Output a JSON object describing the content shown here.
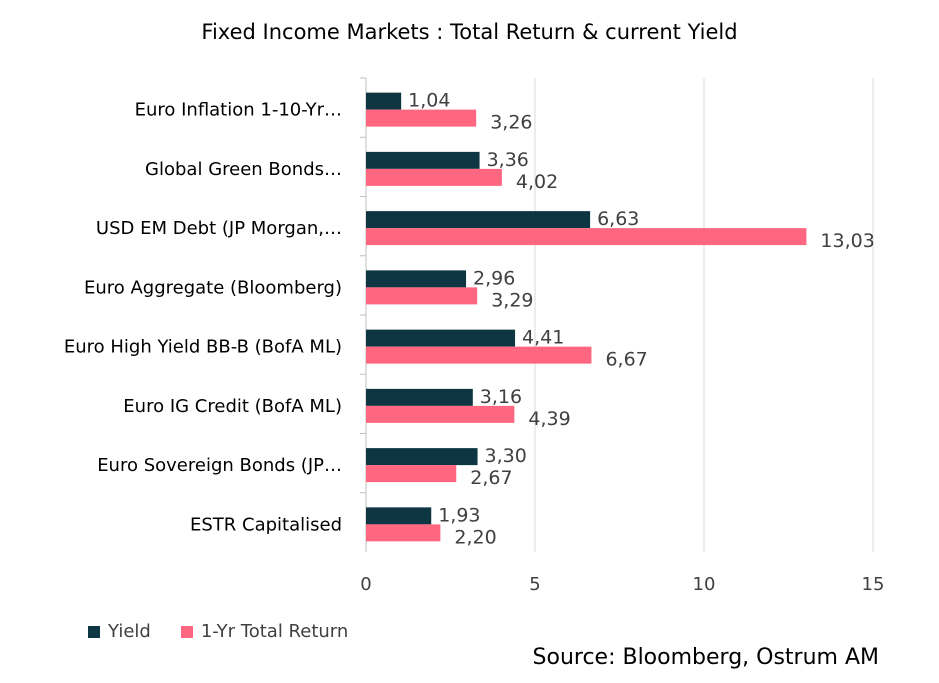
{
  "chart_data": {
    "type": "bar",
    "orientation": "horizontal",
    "title": "Fixed Income Markets : Total Return & current Yield",
    "categories": [
      "Euro Inflation 1-10-Yr…",
      "Global Green Bonds…",
      "USD EM Debt (JP Morgan,…",
      "Euro Aggregate (Bloomberg)",
      "Euro High Yield BB-B (BofA ML)",
      "Euro IG Credit (BofA ML)",
      "Euro Sovereign Bonds (JP…",
      "ESTR Capitalised"
    ],
    "series": [
      {
        "name": "Yield",
        "color": "#0d3642",
        "values": [
          1.04,
          3.36,
          6.63,
          2.96,
          4.41,
          3.16,
          3.3,
          1.93
        ],
        "labels": [
          "1,04",
          "3,36",
          "6,63",
          "2,96",
          "4,41",
          "3,16",
          "3,30",
          "1,93"
        ]
      },
      {
        "name": "1-Yr Total Return",
        "color": "#ff6680",
        "values": [
          3.26,
          4.02,
          13.03,
          3.29,
          6.67,
          4.39,
          2.67,
          2.2
        ],
        "labels": [
          "3,26",
          "4,02",
          "13,03",
          "3,29",
          "6,67",
          "4,39",
          "2,67",
          "2,20"
        ]
      }
    ],
    "xlim": [
      0,
      15
    ],
    "xticks": [
      "0",
      "5",
      "10",
      "15"
    ],
    "grid": "vertical",
    "legend": "bottom-left",
    "source": "Source: Bloomberg, Ostrum AM"
  }
}
